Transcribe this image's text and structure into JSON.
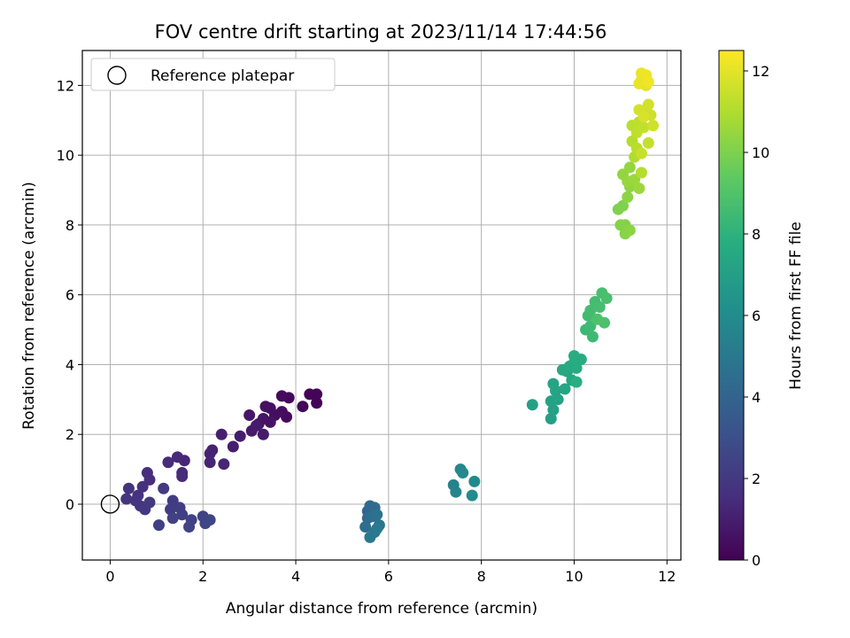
{
  "chart_data": {
    "type": "scatter",
    "title": "FOV centre drift starting at 2023/11/14 17:44:56",
    "xlabel": "Angular distance from reference (arcmin)",
    "ylabel": "Rotation from reference (arcmin)",
    "xlim": [
      -0.6,
      12.3
    ],
    "ylim": [
      -1.6,
      13.0
    ],
    "xticks": [
      0,
      2,
      4,
      6,
      8,
      10,
      12
    ],
    "yticks": [
      0,
      2,
      4,
      6,
      8,
      10,
      12
    ],
    "grid": true,
    "legend": {
      "position": "top-left",
      "entries": [
        "Reference platepar"
      ]
    },
    "reference_point": {
      "x": 0,
      "y": 0
    },
    "colorbar": {
      "label": "Hours from first FF file",
      "range": [
        0,
        12.5
      ],
      "ticks": [
        0,
        2,
        4,
        6,
        8,
        10,
        12
      ],
      "colormap": "viridis"
    },
    "series": [
      {
        "marker_color_by": "hours",
        "points": [
          {
            "x": 4.3,
            "y": 3.15,
            "h": 0.05
          },
          {
            "x": 4.45,
            "y": 3.15,
            "h": 0.1
          },
          {
            "x": 4.45,
            "y": 2.9,
            "h": 0.15
          },
          {
            "x": 4.15,
            "y": 2.8,
            "h": 0.2
          },
          {
            "x": 3.85,
            "y": 3.05,
            "h": 0.25
          },
          {
            "x": 3.7,
            "y": 3.1,
            "h": 0.3
          },
          {
            "x": 3.8,
            "y": 2.5,
            "h": 0.35
          },
          {
            "x": 3.7,
            "y": 2.65,
            "h": 0.4
          },
          {
            "x": 3.55,
            "y": 2.55,
            "h": 0.45
          },
          {
            "x": 3.45,
            "y": 2.75,
            "h": 0.5
          },
          {
            "x": 3.35,
            "y": 2.8,
            "h": 0.55
          },
          {
            "x": 3.45,
            "y": 2.35,
            "h": 0.6
          },
          {
            "x": 3.3,
            "y": 2.45,
            "h": 0.65
          },
          {
            "x": 3.2,
            "y": 2.3,
            "h": 0.7
          },
          {
            "x": 3.0,
            "y": 2.55,
            "h": 0.75
          },
          {
            "x": 3.05,
            "y": 2.1,
            "h": 0.8
          },
          {
            "x": 3.3,
            "y": 2.0,
            "h": 0.85
          },
          {
            "x": 3.15,
            "y": 2.25,
            "h": 0.9
          },
          {
            "x": 2.8,
            "y": 1.95,
            "h": 0.95
          },
          {
            "x": 2.65,
            "y": 1.65,
            "h": 1.0
          },
          {
            "x": 2.4,
            "y": 2.0,
            "h": 1.05
          },
          {
            "x": 2.2,
            "y": 1.55,
            "h": 1.1
          },
          {
            "x": 2.15,
            "y": 1.45,
            "h": 1.15
          },
          {
            "x": 2.15,
            "y": 1.2,
            "h": 1.2
          },
          {
            "x": 2.45,
            "y": 1.15,
            "h": 1.25
          },
          {
            "x": 1.6,
            "y": 1.25,
            "h": 1.3
          },
          {
            "x": 1.45,
            "y": 1.35,
            "h": 1.35
          },
          {
            "x": 1.55,
            "y": 0.9,
            "h": 1.4
          },
          {
            "x": 1.55,
            "y": 0.8,
            "h": 1.45
          },
          {
            "x": 1.25,
            "y": 1.2,
            "h": 1.5
          },
          {
            "x": 0.8,
            "y": 0.9,
            "h": 1.55
          },
          {
            "x": 0.85,
            "y": 0.7,
            "h": 1.6
          },
          {
            "x": 0.7,
            "y": 0.5,
            "h": 1.65
          },
          {
            "x": 0.6,
            "y": 0.25,
            "h": 1.7
          },
          {
            "x": 0.4,
            "y": 0.45,
            "h": 1.75
          },
          {
            "x": 0.35,
            "y": 0.15,
            "h": 1.8
          },
          {
            "x": 0.55,
            "y": 0.1,
            "h": 1.85
          },
          {
            "x": 0.65,
            "y": -0.05,
            "h": 1.9
          },
          {
            "x": 0.75,
            "y": -0.15,
            "h": 1.95
          },
          {
            "x": 0.85,
            "y": 0.05,
            "h": 2.0
          },
          {
            "x": 1.15,
            "y": 0.45,
            "h": 2.05
          },
          {
            "x": 1.35,
            "y": 0.1,
            "h": 2.1
          },
          {
            "x": 1.3,
            "y": -0.15,
            "h": 2.15
          },
          {
            "x": 1.5,
            "y": -0.1,
            "h": 2.2
          },
          {
            "x": 1.55,
            "y": -0.3,
            "h": 2.25
          },
          {
            "x": 1.05,
            "y": -0.6,
            "h": 2.3
          },
          {
            "x": 1.35,
            "y": -0.4,
            "h": 2.35
          },
          {
            "x": 1.75,
            "y": -0.45,
            "h": 2.4
          },
          {
            "x": 1.7,
            "y": -0.65,
            "h": 2.45
          },
          {
            "x": 2.0,
            "y": -0.35,
            "h": 2.5
          },
          {
            "x": 2.05,
            "y": -0.55,
            "h": 2.55
          },
          {
            "x": 2.15,
            "y": -0.45,
            "h": 2.6
          },
          {
            "x": 5.55,
            "y": -0.2,
            "h": 4.1
          },
          {
            "x": 5.6,
            "y": -0.05,
            "h": 4.2
          },
          {
            "x": 5.7,
            "y": -0.1,
            "h": 4.3
          },
          {
            "x": 5.55,
            "y": -0.4,
            "h": 4.4
          },
          {
            "x": 5.5,
            "y": -0.65,
            "h": 4.5
          },
          {
            "x": 5.65,
            "y": -0.35,
            "h": 4.6
          },
          {
            "x": 5.75,
            "y": -0.3,
            "h": 4.7
          },
          {
            "x": 5.8,
            "y": -0.6,
            "h": 4.8
          },
          {
            "x": 5.7,
            "y": -0.8,
            "h": 4.9
          },
          {
            "x": 5.6,
            "y": -0.95,
            "h": 5.0
          },
          {
            "x": 5.75,
            "y": -0.7,
            "h": 5.1
          },
          {
            "x": 7.4,
            "y": 0.55,
            "h": 5.5
          },
          {
            "x": 7.45,
            "y": 0.35,
            "h": 5.6
          },
          {
            "x": 7.55,
            "y": 1.0,
            "h": 5.7
          },
          {
            "x": 7.6,
            "y": 0.9,
            "h": 5.8
          },
          {
            "x": 7.85,
            "y": 0.65,
            "h": 5.9
          },
          {
            "x": 7.8,
            "y": 0.25,
            "h": 6.0
          },
          {
            "x": 9.1,
            "y": 2.85,
            "h": 7.0
          },
          {
            "x": 9.5,
            "y": 2.45,
            "h": 7.05
          },
          {
            "x": 9.55,
            "y": 2.7,
            "h": 7.1
          },
          {
            "x": 9.5,
            "y": 2.95,
            "h": 7.15
          },
          {
            "x": 9.65,
            "y": 3.0,
            "h": 7.2
          },
          {
            "x": 9.6,
            "y": 3.25,
            "h": 7.25
          },
          {
            "x": 9.55,
            "y": 3.45,
            "h": 7.3
          },
          {
            "x": 9.8,
            "y": 3.3,
            "h": 7.35
          },
          {
            "x": 9.95,
            "y": 3.55,
            "h": 7.4
          },
          {
            "x": 9.85,
            "y": 3.8,
            "h": 7.45
          },
          {
            "x": 9.75,
            "y": 3.85,
            "h": 7.5
          },
          {
            "x": 9.9,
            "y": 3.95,
            "h": 7.55
          },
          {
            "x": 10.0,
            "y": 4.05,
            "h": 7.6
          },
          {
            "x": 10.05,
            "y": 3.9,
            "h": 7.65
          },
          {
            "x": 10.15,
            "y": 4.15,
            "h": 7.7
          },
          {
            "x": 10.0,
            "y": 4.25,
            "h": 7.75
          },
          {
            "x": 10.05,
            "y": 3.5,
            "h": 7.8
          },
          {
            "x": 10.25,
            "y": 5.0,
            "h": 8.4
          },
          {
            "x": 10.4,
            "y": 4.8,
            "h": 8.45
          },
          {
            "x": 10.35,
            "y": 5.1,
            "h": 8.5
          },
          {
            "x": 10.3,
            "y": 5.4,
            "h": 8.55
          },
          {
            "x": 10.35,
            "y": 5.55,
            "h": 8.6
          },
          {
            "x": 10.45,
            "y": 5.8,
            "h": 8.65
          },
          {
            "x": 10.55,
            "y": 5.65,
            "h": 8.7
          },
          {
            "x": 10.6,
            "y": 6.05,
            "h": 8.75
          },
          {
            "x": 10.7,
            "y": 5.9,
            "h": 8.8
          },
          {
            "x": 10.65,
            "y": 5.2,
            "h": 8.85
          },
          {
            "x": 10.5,
            "y": 5.3,
            "h": 8.9
          },
          {
            "x": 10.95,
            "y": 8.45,
            "h": 10.0
          },
          {
            "x": 11.05,
            "y": 8.55,
            "h": 10.05
          },
          {
            "x": 11.1,
            "y": 8.0,
            "h": 10.1
          },
          {
            "x": 11.0,
            "y": 8.0,
            "h": 10.15
          },
          {
            "x": 11.1,
            "y": 7.75,
            "h": 10.2
          },
          {
            "x": 11.2,
            "y": 7.85,
            "h": 10.25
          },
          {
            "x": 11.15,
            "y": 8.8,
            "h": 10.3
          },
          {
            "x": 11.2,
            "y": 9.1,
            "h": 10.35
          },
          {
            "x": 11.05,
            "y": 9.45,
            "h": 10.4
          },
          {
            "x": 11.2,
            "y": 9.65,
            "h": 10.45
          },
          {
            "x": 11.15,
            "y": 9.25,
            "h": 10.5
          },
          {
            "x": 11.3,
            "y": 9.3,
            "h": 10.55
          },
          {
            "x": 11.4,
            "y": 9.05,
            "h": 10.6
          },
          {
            "x": 11.3,
            "y": 9.95,
            "h": 11.0
          },
          {
            "x": 11.45,
            "y": 9.5,
            "h": 11.05
          },
          {
            "x": 11.25,
            "y": 10.4,
            "h": 11.1
          },
          {
            "x": 11.35,
            "y": 10.2,
            "h": 11.15
          },
          {
            "x": 11.25,
            "y": 10.85,
            "h": 11.2
          },
          {
            "x": 11.4,
            "y": 10.95,
            "h": 11.25
          },
          {
            "x": 11.35,
            "y": 10.65,
            "h": 11.3
          },
          {
            "x": 11.5,
            "y": 10.8,
            "h": 11.35
          },
          {
            "x": 11.6,
            "y": 10.35,
            "h": 11.4
          },
          {
            "x": 11.45,
            "y": 10.05,
            "h": 11.45
          },
          {
            "x": 11.55,
            "y": 11.25,
            "h": 11.5
          },
          {
            "x": 11.65,
            "y": 11.15,
            "h": 11.55
          },
          {
            "x": 11.7,
            "y": 10.85,
            "h": 11.6
          },
          {
            "x": 11.6,
            "y": 11.45,
            "h": 11.65
          },
          {
            "x": 11.4,
            "y": 11.3,
            "h": 11.7
          },
          {
            "x": 11.5,
            "y": 11.1,
            "h": 11.75
          },
          {
            "x": 11.55,
            "y": 12.0,
            "h": 12.0
          },
          {
            "x": 11.45,
            "y": 12.15,
            "h": 12.05
          },
          {
            "x": 11.4,
            "y": 12.05,
            "h": 12.1
          },
          {
            "x": 11.45,
            "y": 12.35,
            "h": 12.15
          },
          {
            "x": 11.55,
            "y": 12.3,
            "h": 12.2
          },
          {
            "x": 11.6,
            "y": 12.1,
            "h": 12.25
          }
        ]
      }
    ]
  }
}
